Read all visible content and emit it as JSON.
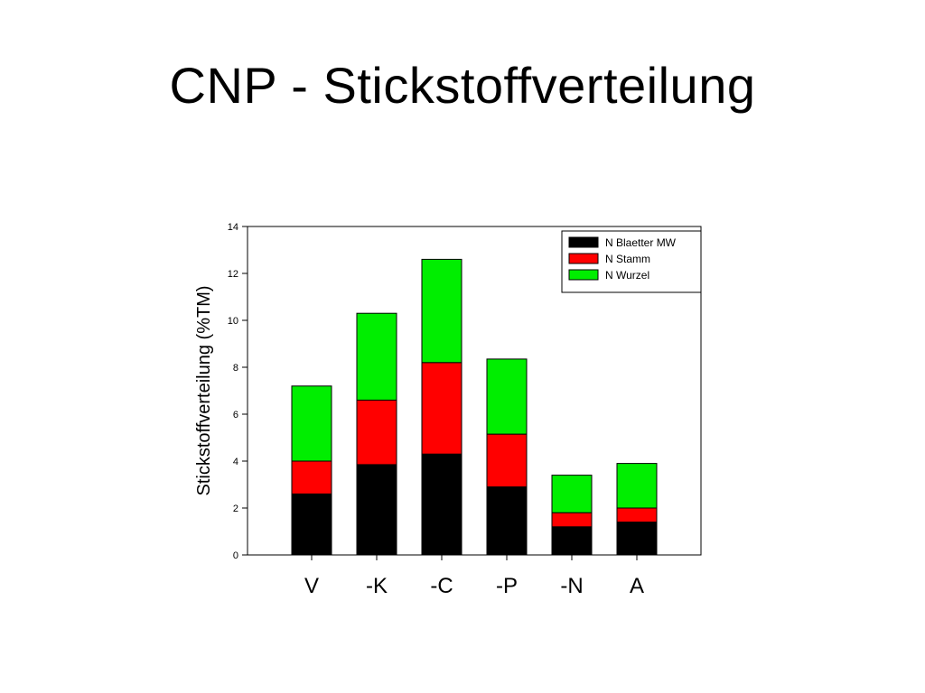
{
  "slide": {
    "title": "CNP - Stickstoffverteilung"
  },
  "chart_data": {
    "type": "bar",
    "stacked": true,
    "categories": [
      "V",
      "-K",
      "-C",
      "-P",
      "-N",
      "A"
    ],
    "series": [
      {
        "name": "N Blaetter MW",
        "color": "#000000",
        "values": [
          2.6,
          3.85,
          4.3,
          2.9,
          1.2,
          1.4
        ]
      },
      {
        "name": "N Stamm",
        "color": "#ff0000",
        "values": [
          1.4,
          2.75,
          3.9,
          2.25,
          0.6,
          0.6
        ]
      },
      {
        "name": "N Wurzel",
        "color": "#00ee00",
        "values": [
          3.2,
          3.7,
          4.4,
          3.2,
          1.6,
          1.9
        ]
      }
    ],
    "title": "",
    "xlabel": "",
    "ylabel": "Stickstoffverteilung (%TM)",
    "ylim": [
      0,
      14
    ],
    "yticks": [
      0,
      2,
      4,
      6,
      8,
      10,
      12,
      14
    ],
    "grid": false,
    "legend_position": "top-right"
  }
}
